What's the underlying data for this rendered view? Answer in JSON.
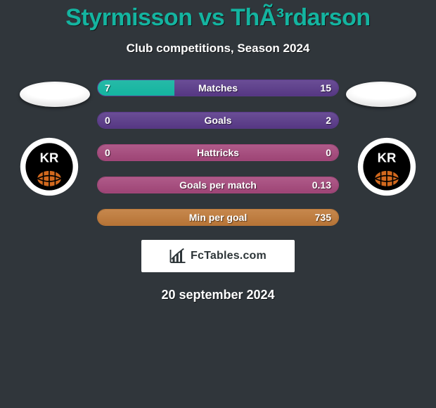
{
  "background_color": "#30363b",
  "title": "Styrmisson vs ThÃ³rdarson",
  "title_color": "#14b4a0",
  "subtitle": "Club competitions, Season 2024",
  "date": "20 september 2024",
  "brand_text": "FcTables.com",
  "left_club": "KR",
  "right_club": "KR",
  "bars": [
    {
      "label": "Matches",
      "left": "7",
      "right": "15",
      "pct": 31.8,
      "fill": "#14b4a0",
      "track": "#5a3a8a"
    },
    {
      "label": "Goals",
      "left": "0",
      "right": "2",
      "pct": 0,
      "fill": "#14b4a0",
      "track": "#5a3a8a"
    },
    {
      "label": "Hattricks",
      "left": "0",
      "right": "0",
      "pct": 0,
      "fill": "#a6487c",
      "track": "#a6487c"
    },
    {
      "label": "Goals per match",
      "left": "",
      "right": "0.13",
      "pct": 0,
      "fill": "#a6487c",
      "track": "#a6487c"
    },
    {
      "label": "Min per goal",
      "left": "",
      "right": "735",
      "pct": 0,
      "fill": "#c07a39",
      "track": "#c07a39"
    }
  ]
}
